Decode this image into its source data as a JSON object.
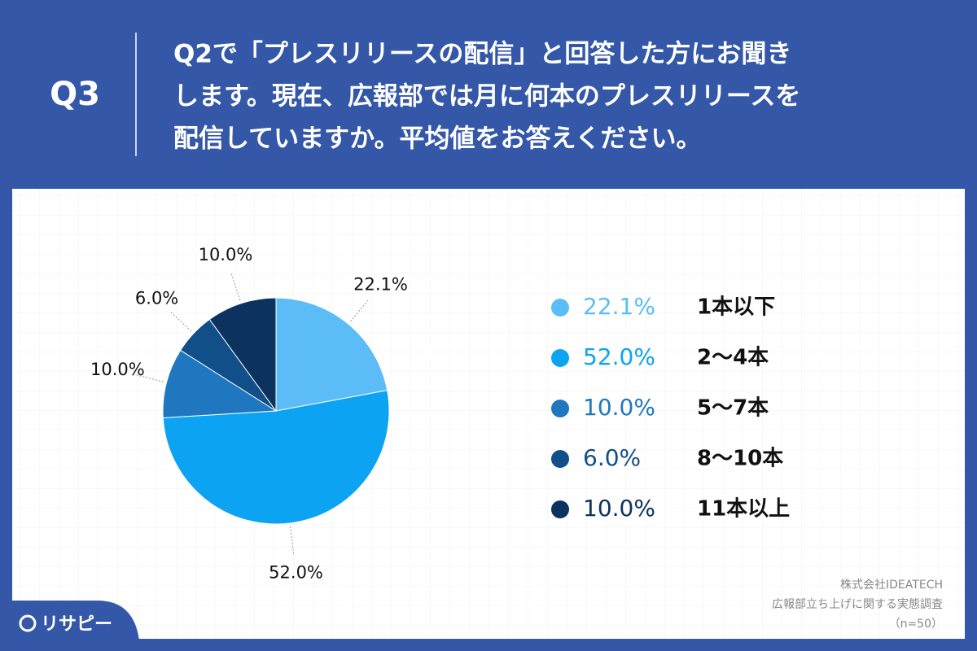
{
  "chart_data": {
    "type": "pie",
    "header_label": "Q3",
    "title": [
      "Q2で「プレスリリースの配信」と回答した方にお聞き",
      "します。現在、広報部では月に何本のプレスリリースを",
      "配信していますか。平均値をお答えください。"
    ],
    "categories": [
      "1本以下",
      "2〜4本",
      "5〜7本",
      "8〜10本",
      "11本以上"
    ],
    "values": [
      22.1,
      52.0,
      10.0,
      6.0,
      10.0
    ],
    "value_labels": [
      "22.1%",
      "52.0%",
      "10.0%",
      "6.0%",
      "10.0%"
    ],
    "colors": [
      "#5cbcf7",
      "#0ba3f2",
      "#1f78bf",
      "#114f88",
      "#0c3360"
    ],
    "source": [
      "株式会社IDEATECH",
      "広報部立ち上げに関する実態調査",
      "（n=50）"
    ],
    "brand": "リサピー"
  }
}
